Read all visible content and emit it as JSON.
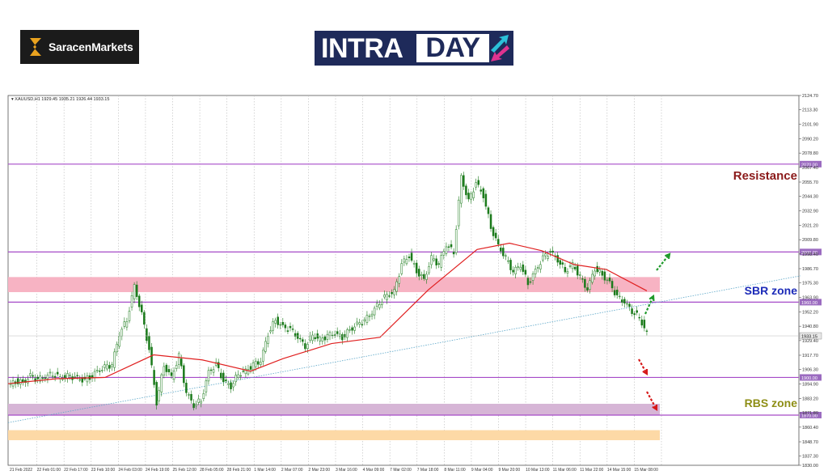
{
  "header": {
    "brand_name": "SaracenMarkets",
    "intraday_logo": {
      "part1": "INTRA",
      "part2": "DAY"
    }
  },
  "chart_data": {
    "type": "candlestick",
    "symbol_header": "XAUUSD,H1 1929.45 1935.21 1926.44 1933.15",
    "last_price": "1933.15",
    "ylim": [
      1830.0,
      2124.7
    ],
    "y_ticks": [
      "2124.70",
      "2113.30",
      "2101.90",
      "2090.20",
      "2078.80",
      "2067.40",
      "2055.70",
      "2044.30",
      "2032.90",
      "2021.20",
      "2009.80",
      "1998.40",
      "1986.70",
      "1975.30",
      "1963.90",
      "1952.20",
      "1940.80",
      "1929.40",
      "1917.70",
      "1906.30",
      "1894.90",
      "1883.20",
      "1871.80",
      "1860.40",
      "1848.70",
      "1837.30",
      "1830.00"
    ],
    "x_labels": [
      "21 Feb 2022",
      "22 Feb 01:00",
      "22 Feb 17:00",
      "23 Feb 10:00",
      "24 Feb 03:00",
      "24 Feb 19:00",
      "25 Feb 12:00",
      "28 Feb 05:00",
      "28 Feb 21:00",
      "1 Mar 14:00",
      "2 Mar 07:00",
      "2 Mar 23:00",
      "3 Mar 16:00",
      "4 Mar 09:00",
      "7 Mar 02:00",
      "7 Mar 18:00",
      "8 Mar 11:00",
      "9 Mar 04:00",
      "9 Mar 20:00",
      "10 Mar 13:00",
      "11 Mar 06:00",
      "11 Mar 22:00",
      "14 Mar 15:00",
      "15 Mar 08:00"
    ],
    "price_path": [
      1893,
      1897,
      1896,
      1901,
      1898,
      1901,
      1903,
      1900,
      1901,
      1900,
      1898,
      1900,
      1905,
      1908,
      1910,
      1935,
      1946,
      1973,
      1950,
      1922,
      1880,
      1910,
      1900,
      1917,
      1888,
      1878,
      1882,
      1904,
      1910,
      1897,
      1893,
      1903,
      1905,
      1910,
      1913,
      1935,
      1946,
      1940,
      1938,
      1932,
      1925,
      1934,
      1930,
      1933,
      1935,
      1932,
      1938,
      1942,
      1945,
      1952,
      1960,
      1966,
      1968,
      1990,
      1997,
      1985,
      1978,
      1995,
      1990,
      2006,
      2000,
      2060,
      2040,
      2055,
      2045,
      2020,
      2005,
      1995,
      1984,
      1990,
      1975,
      1985,
      1995,
      2000,
      1994,
      1985,
      1990,
      1980,
      1970,
      1987,
      1982,
      1975,
      1964,
      1960,
      1953,
      1948,
      1935
    ],
    "moving_average": [
      [
        0,
        1895
      ],
      [
        60,
        1899
      ],
      [
        120,
        1900
      ],
      [
        180,
        1918
      ],
      [
        240,
        1914
      ],
      [
        300,
        1905
      ],
      [
        340,
        1915
      ],
      [
        400,
        1927
      ],
      [
        460,
        1932
      ],
      [
        520,
        1970
      ],
      [
        580,
        2002
      ],
      [
        620,
        2007
      ],
      [
        660,
        2001
      ],
      [
        700,
        1990
      ],
      [
        740,
        1986
      ],
      [
        790,
        1969
      ]
    ],
    "horizontal_levels": [
      {
        "price": 2070.0,
        "label": "2070.00",
        "color": "#a64bc8"
      },
      {
        "price": 2000.0,
        "label": "2000.00",
        "color": "#a64bc8"
      },
      {
        "price": 1960.0,
        "label": "1960.00",
        "color": "#a64bc8"
      },
      {
        "price": 1900.0,
        "label": "1900.00",
        "color": "#a64bc8"
      },
      {
        "price": 1870.0,
        "label": "1870.00",
        "color": "#a64bc8"
      }
    ],
    "zones": [
      {
        "top": 1980,
        "bottom": 1968,
        "color": "#f7b3c3"
      },
      {
        "top": 1879,
        "bottom": 1870,
        "color": "#d6b5d6"
      },
      {
        "top": 1858,
        "bottom": 1850,
        "color": "#fdd9a6"
      }
    ],
    "trendline": {
      "from": [
        0,
        1864
      ],
      "to": [
        980,
        1981
      ],
      "color": "#5aa6c8"
    },
    "annotations": [
      {
        "text": "Resistance",
        "color": "#8b1a1a"
      },
      {
        "text": "SBR zone",
        "color": "#1c2bb8"
      },
      {
        "text": "RBS zone",
        "color": "#8e8e16"
      }
    ],
    "arrow_colors": {
      "up": "#1f9a2b",
      "down": "#d61818"
    }
  }
}
